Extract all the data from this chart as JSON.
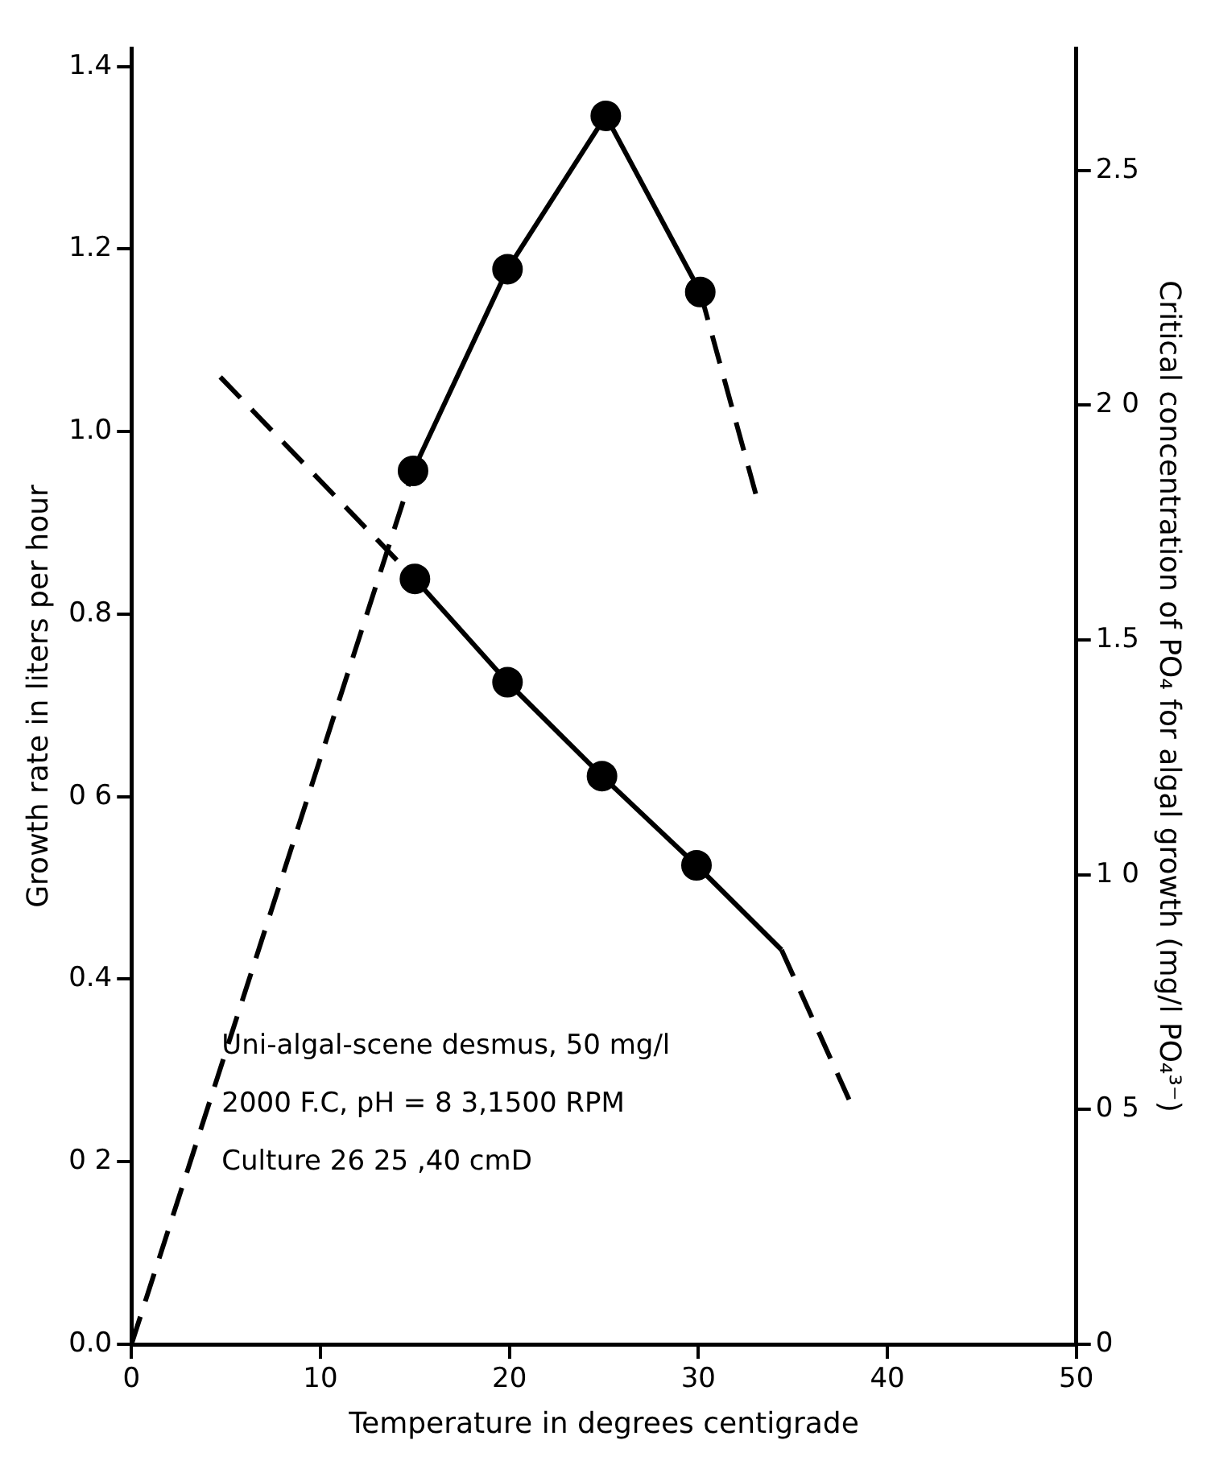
{
  "chart_data": {
    "type": "line",
    "xlabel": "Temperature in degrees centigrade",
    "ylabel": "Growth rate in liters per hour",
    "y2label": "Critical concentration of PO₄ for algal growth (mg/l PO₄³⁻)",
    "xlim": [
      0,
      50
    ],
    "xticks": [
      0,
      10,
      20,
      30,
      40,
      50
    ],
    "ylim": [
      0,
      1.42
    ],
    "yticks": [
      {
        "value": 0,
        "label": "0.0"
      },
      {
        "value": 0.2,
        "label": "0 2"
      },
      0.4,
      {
        "value": 0.6,
        "label": "0 6"
      },
      0.8,
      {
        "value": 1,
        "label": "1.0"
      },
      1.2,
      1.4
    ],
    "y2lim": [
      0,
      2.76
    ],
    "y2ticks": [
      0,
      {
        "value": 0.5,
        "label": "0 5"
      },
      {
        "value": 1,
        "label": "1 0"
      },
      1.5,
      {
        "value": 2,
        "label": "2 0"
      },
      2.5
    ],
    "grid": false,
    "legend": false,
    "annotations": [
      "Uni-algal-scene desmus, 50 mg/l",
      "2000 F.C, pH = 8 3,1500 RPM",
      "Culture 26 25 ,40 cmD"
    ],
    "series": [
      {
        "color": "#000000",
        "x": [
          14.9,
          19.9,
          25.1,
          30.1
        ],
        "values": [
          0.957,
          1.178,
          1.346,
          1.153
        ],
        "marker": "circle",
        "line_style": "solid"
      },
      {
        "color": "#000000",
        "x": [
          0,
          14.9
        ],
        "values": [
          0,
          0.957
        ],
        "marker": "none",
        "line_style": "dashed"
      },
      {
        "color": "#000000",
        "x": [
          30.1,
          33.1
        ],
        "values": [
          1.153,
          0.927
        ],
        "marker": "none",
        "line_style": "dashed"
      },
      {
        "color": "#000000",
        "axis": "y2",
        "x": [
          15,
          19.9,
          24.9,
          29.9
        ],
        "values": [
          1.63,
          1.41,
          1.21,
          1.02
        ],
        "marker": "circle",
        "line_style": "solid"
      },
      {
        "color": "#000000",
        "axis": "y2",
        "x": [
          4.7,
          15
        ],
        "values": [
          2.06,
          1.63
        ],
        "marker": "none",
        "line_style": "dashed"
      },
      {
        "color": "#000000",
        "axis": "y2",
        "x": [
          29.9,
          34.4
        ],
        "values": [
          1.02,
          0.84
        ],
        "marker": "none",
        "line_style": "solid"
      },
      {
        "color": "#000000",
        "axis": "y2",
        "x": [
          34.4,
          38.1
        ],
        "values": [
          0.84,
          0.51
        ],
        "marker": "none",
        "line_style": "dashed"
      }
    ]
  }
}
